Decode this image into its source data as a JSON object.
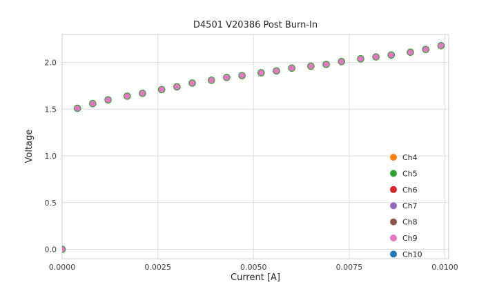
{
  "chart_data": {
    "type": "scatter",
    "title": "D4501 V20386 Post Burn-In",
    "xlabel": "Current [A]",
    "ylabel": "Voltage",
    "xlim": [
      0.0,
      0.0101
    ],
    "ylim": [
      -0.1,
      2.3
    ],
    "grid": true,
    "legend_position": "lower right",
    "xticks": [
      0.0,
      0.0025,
      0.005,
      0.0075,
      0.01
    ],
    "xtick_labels": [
      "0.0000",
      "0.0025",
      "0.0050",
      "0.0075",
      "0.0100"
    ],
    "yticks": [
      0.0,
      0.5,
      1.0,
      1.5,
      2.0
    ],
    "ytick_labels": [
      "0.0",
      "0.5",
      "1.0",
      "1.5",
      "2.0"
    ],
    "x": [
      0.0,
      0.0004,
      0.0008,
      0.0012,
      0.0017,
      0.0021,
      0.0026,
      0.003,
      0.0034,
      0.0039,
      0.0043,
      0.0047,
      0.0052,
      0.0056,
      0.006,
      0.0065,
      0.0069,
      0.0073,
      0.0078,
      0.0082,
      0.0086,
      0.0091,
      0.0095,
      0.0099
    ],
    "y_shared": [
      0.0,
      1.51,
      1.56,
      1.6,
      1.64,
      1.67,
      1.71,
      1.74,
      1.78,
      1.81,
      1.84,
      1.86,
      1.89,
      1.91,
      1.94,
      1.96,
      1.98,
      2.01,
      2.04,
      2.06,
      2.08,
      2.11,
      2.14,
      2.18
    ],
    "series_overlap": true,
    "series": [
      {
        "name": "Ch4",
        "color": "#ff7f0e"
      },
      {
        "name": "Ch5",
        "color": "#2ca02c"
      },
      {
        "name": "Ch6",
        "color": "#d62728"
      },
      {
        "name": "Ch7",
        "color": "#9467bd"
      },
      {
        "name": "Ch8",
        "color": "#8c564b"
      },
      {
        "name": "Ch9",
        "color": "#e377c2"
      },
      {
        "name": "Ch10",
        "color": "#1f77b4"
      }
    ],
    "colors": {
      "grid": "#dcdce2",
      "spine": "#cccccc",
      "text": "#262626",
      "tick_text": "#3c3c3c",
      "background": "#ffffff"
    }
  }
}
